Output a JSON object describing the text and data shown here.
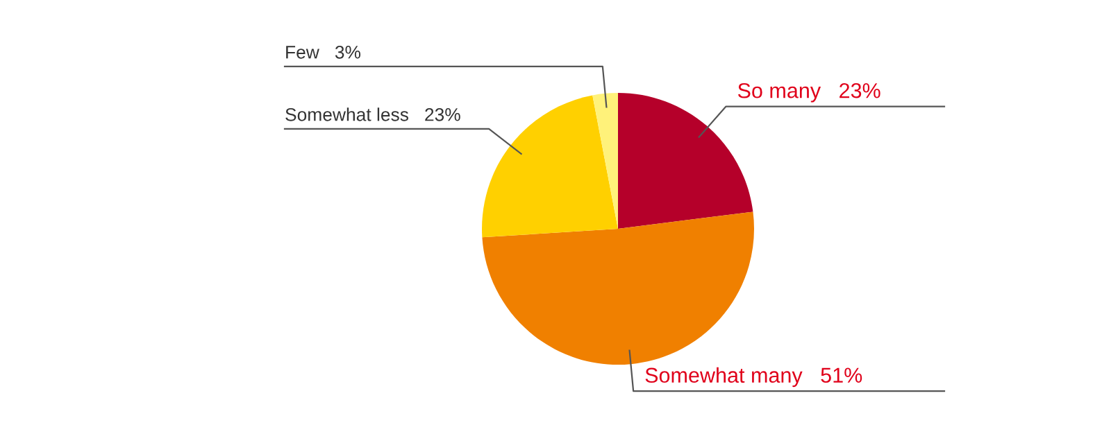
{
  "chart_data": {
    "type": "pie",
    "categories": [
      "So many",
      "Somewhat many",
      "Somewhat less",
      "Few"
    ],
    "values": [
      23,
      51,
      23,
      3
    ],
    "value_labels": [
      "23%",
      "51%",
      "23%",
      "3%"
    ],
    "colors": [
      "#b5002a",
      "#f08000",
      "#ffd000",
      "#fff27a"
    ],
    "legend": false
  }
}
